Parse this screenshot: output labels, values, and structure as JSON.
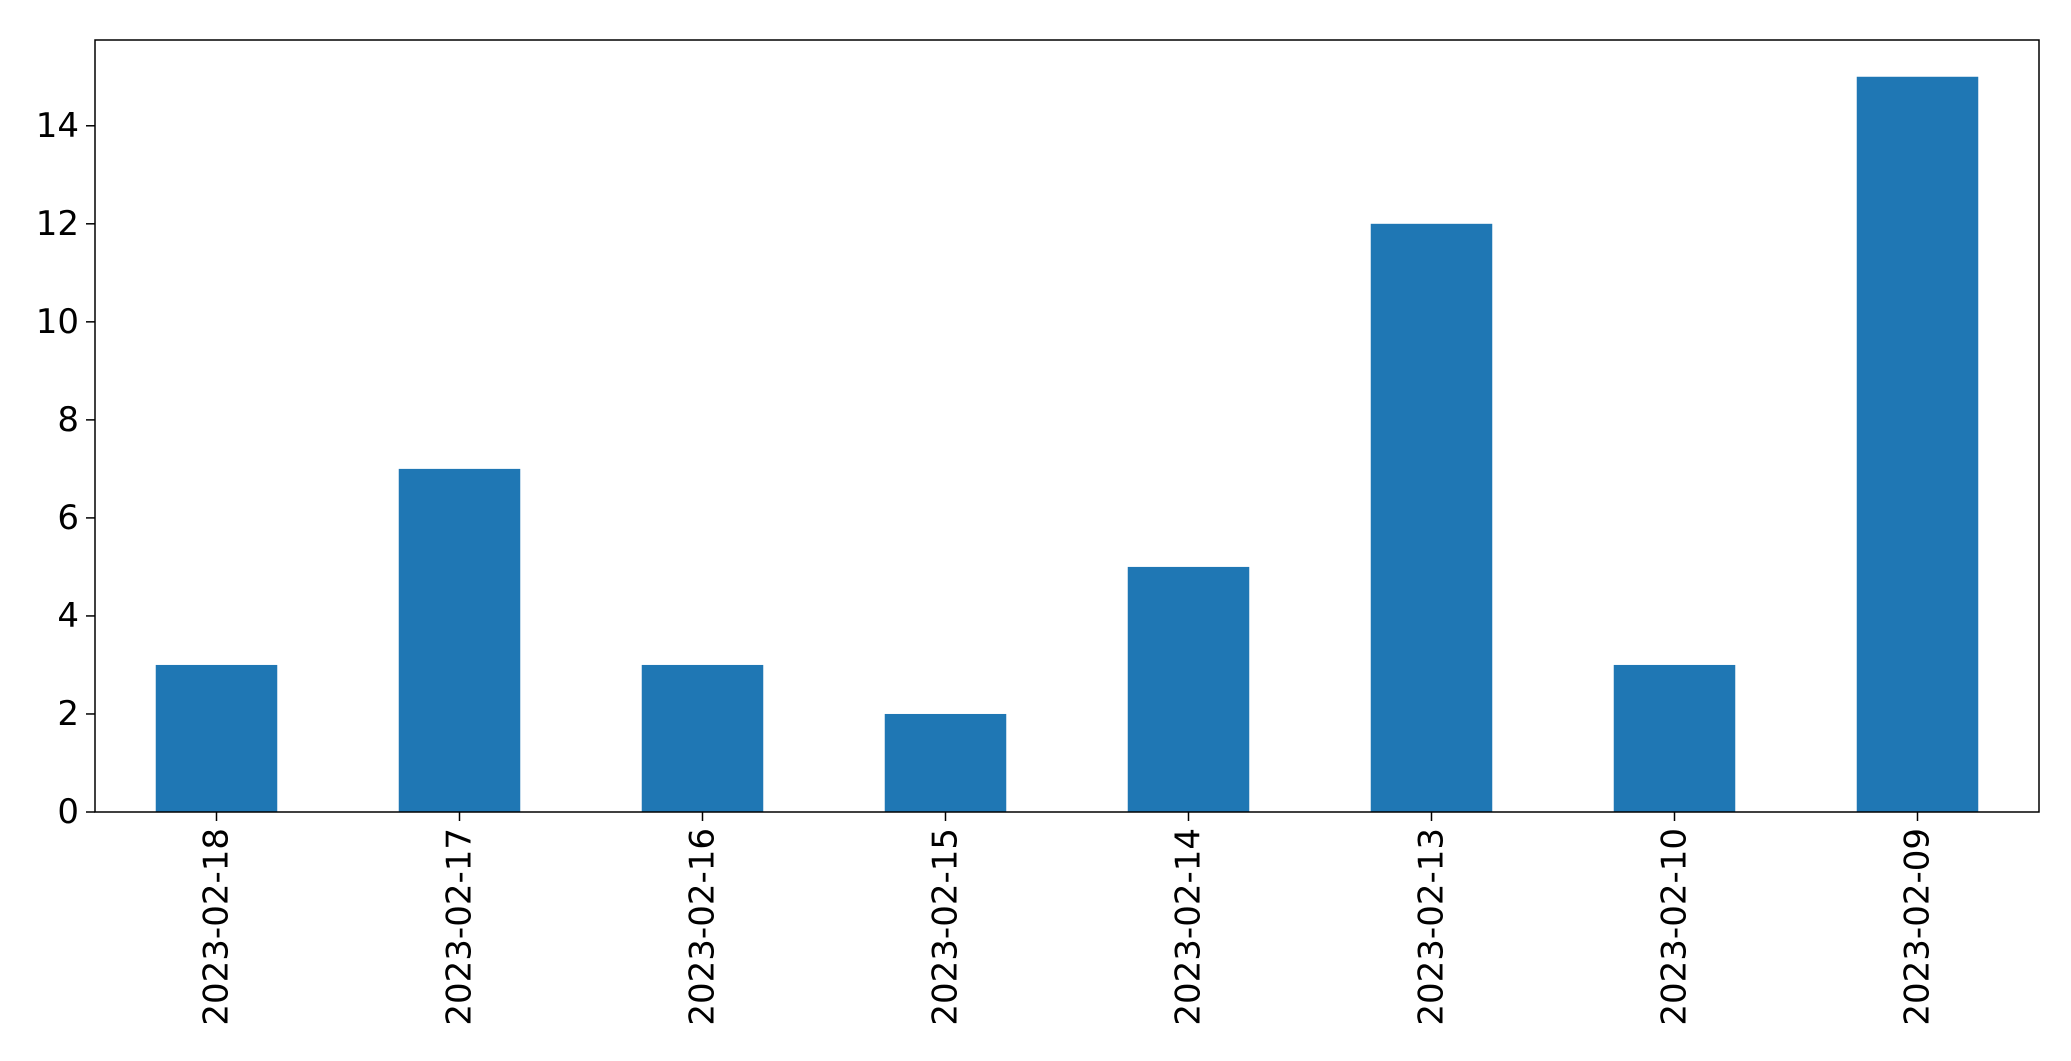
{
  "chart_data": {
    "type": "bar",
    "title": "",
    "xlabel": "",
    "ylabel": "",
    "categories": [
      "2023-02-18",
      "2023-02-17",
      "2023-02-16",
      "2023-02-15",
      "2023-02-14",
      "2023-02-13",
      "2023-02-10",
      "2023-02-09"
    ],
    "values": [
      3,
      7,
      3,
      2,
      5,
      12,
      3,
      15
    ],
    "ylim": [
      0,
      15.75
    ],
    "yticks": [
      0,
      2,
      4,
      6,
      8,
      10,
      12,
      14
    ],
    "grid": false,
    "legend": "none",
    "colors": {
      "bar": "#1f77b4",
      "axis": "#000000",
      "background": "#ffffff"
    }
  }
}
